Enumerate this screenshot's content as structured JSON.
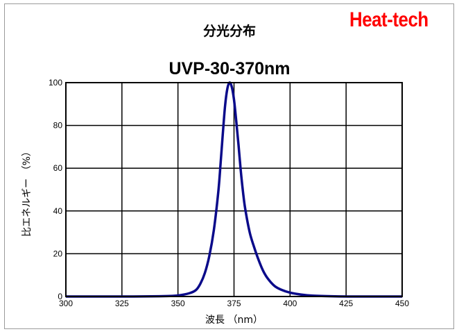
{
  "brand": "Heat-tech",
  "colors": {
    "line": "#0a0a8a",
    "brand": "#ff0000",
    "grid": "#000000"
  },
  "chart_data": {
    "type": "line",
    "title": "分光分布",
    "subtitle": "UVP-30-370nm",
    "xlabel": "波長 （nm）",
    "ylabel": "比エネルギー （%）",
    "xlim": [
      300,
      450
    ],
    "ylim": [
      0,
      100
    ],
    "xticks": [
      300,
      325,
      350,
      375,
      400,
      425,
      450
    ],
    "yticks": [
      0,
      20,
      40,
      60,
      80,
      100
    ],
    "grid": true,
    "series": [
      {
        "x": [
          300,
          330,
          345,
          350,
          355,
          358,
          360,
          362,
          364,
          366,
          368,
          369,
          370,
          371,
          372,
          373,
          374,
          375,
          376,
          377,
          378,
          379,
          380,
          382,
          384,
          386,
          388,
          390,
          393,
          396,
          400,
          405,
          410,
          420,
          430,
          450
        ],
        "y": [
          0,
          0,
          0.2,
          0.5,
          1.5,
          3,
          6,
          11,
          19,
          31,
          49,
          62,
          76,
          89,
          97,
          100,
          98,
          92,
          82,
          71,
          59,
          49,
          41,
          30,
          23,
          17,
          12,
          8.5,
          5,
          3.2,
          1.8,
          0.9,
          0.4,
          0.1,
          0,
          0
        ]
      }
    ]
  }
}
